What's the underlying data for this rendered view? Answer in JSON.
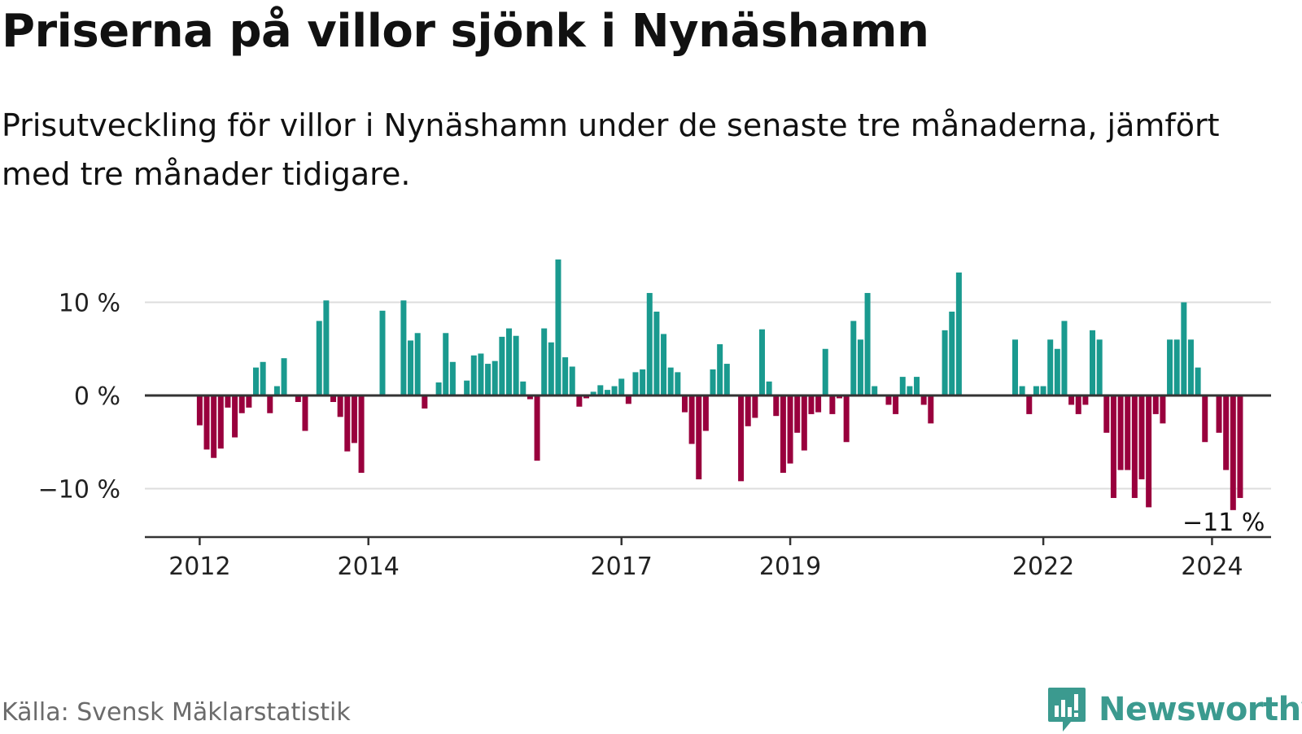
{
  "title": "Priserna på villor sjönk i Nynäshamn",
  "subtitle": "Prisutveckling för villor i Nynäshamn under de senaste tre månaderna, jämfört med tre månader tidigare.",
  "source": "Källa: Svensk Mäklarstatistik",
  "brand": {
    "name": "Newsworthy",
    "icon": "newsworthy-logo-icon"
  },
  "colors": {
    "positive": "#1a9a8f",
    "negative": "#99003d",
    "grid": "#dddddd",
    "axis": "#333333",
    "brand": "#3b9a8f"
  },
  "chart_data": {
    "type": "bar",
    "title": "Priserna på villor sjönk i Nynäshamn",
    "xlabel": "",
    "ylabel": "",
    "ylim": [
      -15,
      15
    ],
    "yticks": [
      {
        "value": 10,
        "label": "10 %"
      },
      {
        "value": 0,
        "label": "0 %"
      },
      {
        "value": -10,
        "label": "−10 %"
      }
    ],
    "grid": true,
    "xlim": [
      2011.35,
      2024.7
    ],
    "xticks": [
      {
        "value": 2012,
        "label": "2012"
      },
      {
        "value": 2014,
        "label": "2014"
      },
      {
        "value": 2017,
        "label": "2017"
      },
      {
        "value": 2019,
        "label": "2019"
      },
      {
        "value": 2022,
        "label": "2022"
      },
      {
        "value": 2024,
        "label": "2024"
      }
    ],
    "x_start": 2012.0,
    "x_step": 0.08333,
    "values": [
      -3.2,
      -5.8,
      -6.7,
      -5.7,
      -1.3,
      -4.5,
      -1.9,
      -1.3,
      3.0,
      3.6,
      -1.9,
      1.0,
      4.0,
      0.0,
      -0.7,
      -3.8,
      0.0,
      8.0,
      10.2,
      -0.7,
      -2.3,
      -6.0,
      -5.1,
      -8.3,
      0.0,
      0.0,
      9.1,
      0.0,
      0.0,
      10.2,
      5.9,
      6.7,
      -1.4,
      0.0,
      1.4,
      6.7,
      3.6,
      0.0,
      1.6,
      4.3,
      4.5,
      3.4,
      3.7,
      6.3,
      7.2,
      6.4,
      1.5,
      -0.4,
      -7.0,
      7.2,
      5.7,
      14.6,
      4.1,
      3.1,
      -1.2,
      -0.3,
      0.4,
      1.1,
      0.6,
      1.0,
      1.8,
      -0.9,
      2.5,
      2.8,
      11.0,
      9.0,
      6.6,
      3.0,
      2.5,
      -1.8,
      -5.2,
      -9.0,
      -3.8,
      2.8,
      5.5,
      3.4,
      0.0,
      -9.2,
      -3.3,
      -2.4,
      7.1,
      1.5,
      -2.2,
      -8.3,
      -7.3,
      -4.0,
      -5.9,
      -2.0,
      -1.8,
      5.0,
      -2.0,
      -0.3,
      -5.0,
      8.0,
      6.0,
      11.0,
      1.0,
      0.0,
      -1.0,
      -2.0,
      2.0,
      1.0,
      2.0,
      -1.0,
      -3.0,
      0.0,
      7.0,
      9.0,
      13.2,
      0.0,
      0.0,
      0.0,
      0.0,
      0.0,
      0.0,
      0.0,
      6.0,
      1.0,
      -2.0,
      1.0,
      1.0,
      6.0,
      5.0,
      8.0,
      -1.0,
      -2.0,
      -1.0,
      7.0,
      6.0,
      -4.0,
      -11.0,
      -8.0,
      -8.0,
      -11.0,
      -9.0,
      -12.0,
      -2.0,
      -3.0,
      6.0,
      6.0,
      10.0,
      6.0,
      3.0,
      -5.0,
      0.0,
      -4.0,
      -8.0,
      -12.3,
      -11.0
    ],
    "annotations": [
      {
        "text": "−11 %",
        "x": 2024.08,
        "y": -11
      }
    ]
  }
}
